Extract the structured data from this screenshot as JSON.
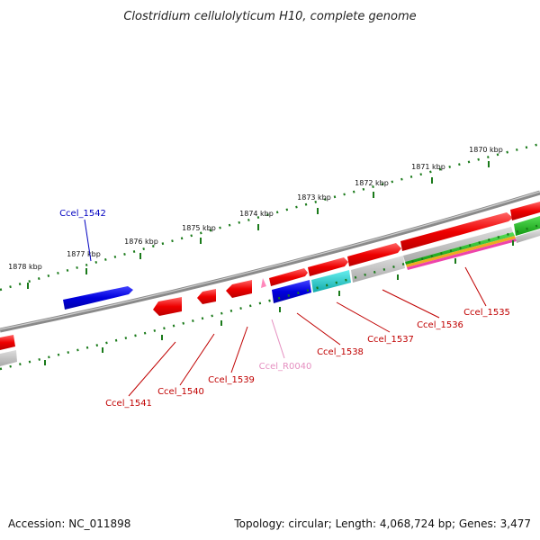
{
  "title": "Clostridium cellulolyticum H10, complete genome",
  "footer": {
    "accession": "Accession: NC_011898",
    "summary": "Topology: circular; Length: 4,068,724 bp; Genes: 3,477"
  },
  "ruler_labels": [
    "1870 kbp",
    "1871 kbp",
    "1872 kbp",
    "1873 kbp",
    "1874 kbp",
    "1875 kbp",
    "1876 kbp",
    "1877 kbp",
    "1878 kbp"
  ],
  "gene_labels": [
    {
      "id": "Ccel_1542",
      "color": "#0000c0"
    },
    {
      "id": "Ccel_1541",
      "color": "#c00000"
    },
    {
      "id": "Ccel_1540",
      "color": "#c00000"
    },
    {
      "id": "Ccel_1539",
      "color": "#c00000"
    },
    {
      "id": "Ccel_R0040",
      "color": "#e58fc0"
    },
    {
      "id": "Ccel_1538",
      "color": "#c00000"
    },
    {
      "id": "Ccel_1537",
      "color": "#c00000"
    },
    {
      "id": "Ccel_1536",
      "color": "#c00000"
    },
    {
      "id": "Ccel_1535",
      "color": "#c00000"
    }
  ],
  "colors": {
    "backbone": "#8a8a8a",
    "cds_red": "#ee1111",
    "cds_blue": "#0000dd",
    "cyan": "#22cccc",
    "grey": "#bbbbbb",
    "green": "#22bb22",
    "pink": "#ff88bb",
    "tick_green": "#1a7a1a"
  }
}
